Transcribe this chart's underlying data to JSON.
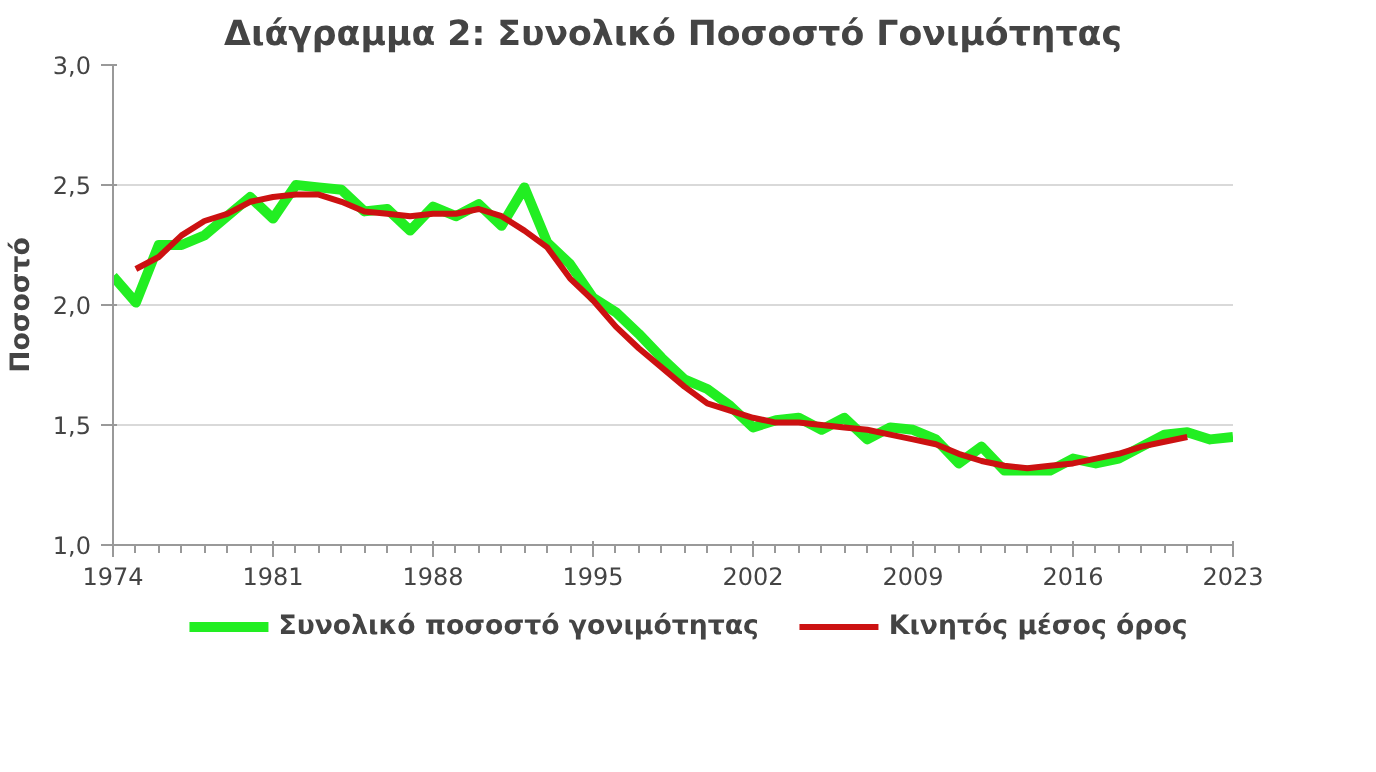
{
  "chart_data": {
    "type": "line",
    "title": "Διάγραμμα 2: Συνολικό Ποσοστό Γονιμότητας",
    "ylabel": "Ποσοστό",
    "xlim": [
      1974,
      2023
    ],
    "xticks": [
      1974,
      1981,
      1988,
      1995,
      2002,
      2009,
      2016,
      2023
    ],
    "ylim": [
      1.0,
      3.0
    ],
    "yticks": [
      {
        "value": 1.0,
        "label": "1,0"
      },
      {
        "value": 1.5,
        "label": "1,5"
      },
      {
        "value": 2.0,
        "label": "2,0"
      },
      {
        "value": 2.5,
        "label": "2,5"
      },
      {
        "value": 3.0,
        "label": "3,0"
      }
    ],
    "grid": "y",
    "legend": "bottom",
    "marker": "none",
    "line_style": "solid",
    "series": [
      {
        "name": "Συνολικό ποσοστό γονιμότητας",
        "color": "#22ee22",
        "x": [
          1974,
          1975,
          1976,
          1977,
          1978,
          1979,
          1980,
          1981,
          1982,
          1983,
          1984,
          1985,
          1986,
          1987,
          1988,
          1989,
          1990,
          1991,
          1992,
          1993,
          1994,
          1995,
          1996,
          1997,
          1998,
          1999,
          2000,
          2001,
          2002,
          2003,
          2004,
          2005,
          2006,
          2007,
          2008,
          2009,
          2010,
          2011,
          2012,
          2013,
          2014,
          2015,
          2016,
          2017,
          2018,
          2019,
          2020,
          2021,
          2022,
          2023
        ],
        "values": [
          2.12,
          2.01,
          2.25,
          2.25,
          2.29,
          2.37,
          2.45,
          2.36,
          2.5,
          2.49,
          2.48,
          2.39,
          2.4,
          2.31,
          2.41,
          2.37,
          2.42,
          2.33,
          2.49,
          2.26,
          2.17,
          2.03,
          1.97,
          1.88,
          1.78,
          1.69,
          1.65,
          1.58,
          1.49,
          1.52,
          1.53,
          1.48,
          1.53,
          1.44,
          1.49,
          1.48,
          1.44,
          1.34,
          1.41,
          1.31,
          1.31,
          1.31,
          1.36,
          1.34,
          1.36,
          1.41,
          1.46,
          1.47,
          1.44,
          1.45
        ]
      },
      {
        "name": "Κινητός μέσος όρος",
        "color": "#cc1111",
        "x": [
          1975,
          1976,
          1977,
          1978,
          1979,
          1980,
          1981,
          1982,
          1983,
          1984,
          1985,
          1986,
          1987,
          1988,
          1989,
          1990,
          1991,
          1992,
          1993,
          1994,
          1995,
          1996,
          1997,
          1998,
          1999,
          2000,
          2001,
          2002,
          2003,
          2004,
          2005,
          2006,
          2007,
          2008,
          2009,
          2010,
          2011,
          2012,
          2013,
          2014,
          2015,
          2016,
          2017,
          2018,
          2019,
          2020,
          2021
        ],
        "values": [
          2.15,
          2.2,
          2.29,
          2.35,
          2.38,
          2.43,
          2.45,
          2.46,
          2.46,
          2.43,
          2.39,
          2.38,
          2.37,
          2.38,
          2.38,
          2.4,
          2.37,
          2.31,
          2.24,
          2.11,
          2.02,
          1.91,
          1.82,
          1.74,
          1.66,
          1.59,
          1.56,
          1.53,
          1.51,
          1.51,
          1.5,
          1.49,
          1.48,
          1.46,
          1.44,
          1.42,
          1.38,
          1.35,
          1.33,
          1.32,
          1.33,
          1.34,
          1.36,
          1.38,
          1.41,
          1.43,
          1.45
        ]
      }
    ]
  }
}
